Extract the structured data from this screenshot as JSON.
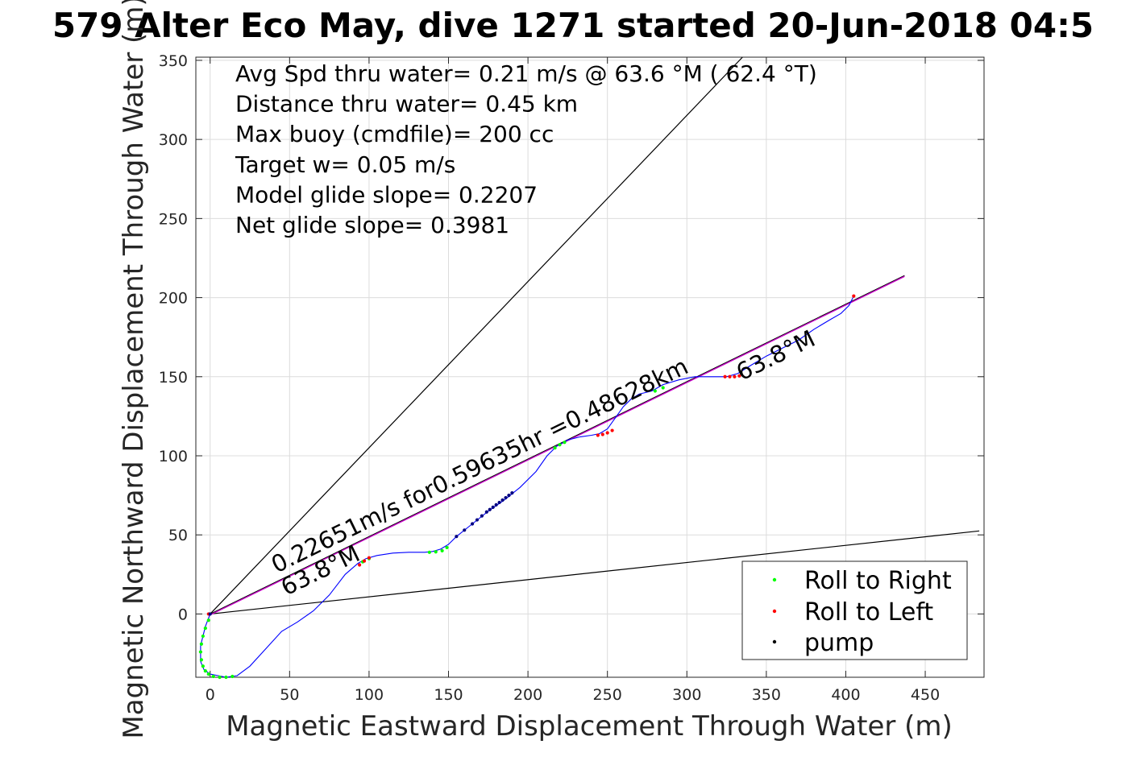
{
  "title": "579 Alter Eco May, dive 1271 started 20-Jun-2018 04:5",
  "stats": [
    "Avg Spd thru water=  0.21 m/s @  63.6 °M ( 62.4 °T)",
    "Distance thru water=  0.45 km",
    "Max buoy (cmdfile)= 200 cc",
    "Target w= 0.05 m/s",
    "Model glide slope= 0.2207",
    "Net glide slope= 0.3981"
  ],
  "annotations": {
    "speed_line_label": "0.22651m/s for0.59635hr =0.48628km",
    "heading_label_upper": "63.8°M",
    "heading_label_lower": "63.8°M"
  },
  "colors": {
    "track": "#0000ff",
    "roll_right": "#00ff00",
    "roll_left": "#ff0000",
    "pump": "#000080",
    "net_heading_line": "#cc00cc",
    "glide_envelope": "#000000"
  },
  "chart_data": {
    "type": "scatter",
    "xlabel": "Magnetic Eastward Displacement Through Water (m)",
    "ylabel": "Magnetic Northward Displacement Through Water (m)",
    "xlim": [
      -9,
      487
    ],
    "ylim": [
      -40,
      352
    ],
    "xticks": [
      0,
      50,
      100,
      150,
      200,
      250,
      300,
      350,
      400,
      450
    ],
    "yticks": [
      0,
      50,
      100,
      150,
      200,
      250,
      300,
      350
    ],
    "grid": true,
    "legend_position": "bottom-right",
    "legend": [
      "Roll to Right",
      "Roll to Left",
      "pump"
    ],
    "series": [
      {
        "name": "track",
        "style": "line",
        "x": [
          0,
          -3,
          -6,
          -6,
          -4,
          0,
          5,
          10,
          17,
          25,
          35,
          45,
          55,
          65,
          75,
          85,
          93,
          98,
          105,
          115,
          125,
          135,
          140,
          145,
          150,
          155,
          165,
          175,
          185,
          195,
          205,
          212,
          218,
          225,
          233,
          240,
          245,
          250,
          255,
          260,
          265,
          270,
          278,
          285,
          295,
          305,
          315,
          325,
          332,
          340,
          350,
          360,
          370,
          380,
          390,
          397,
          402,
          405
        ],
        "y": [
          0,
          -8,
          -20,
          -30,
          -35,
          -38,
          -39,
          -40,
          -39,
          -33,
          -22,
          -11,
          -5,
          2,
          12,
          25,
          32,
          35,
          37,
          38.5,
          39,
          39,
          39.5,
          41,
          44,
          49,
          57,
          65,
          72,
          80,
          90,
          100,
          106,
          110,
          112,
          113,
          114,
          117,
          124,
          131,
          136,
          139,
          141,
          145,
          148,
          150,
          150,
          150,
          152,
          157,
          163,
          168,
          173,
          180,
          186,
          190,
          195,
          201
        ]
      },
      {
        "name": "Roll to Right",
        "style": "dot",
        "x": [
          -1,
          -3,
          -4.5,
          -5.5,
          -6,
          -5.5,
          -4.5,
          -3,
          -1,
          2,
          6,
          10,
          14,
          96,
          100,
          138,
          142,
          146,
          149,
          217,
          220,
          223,
          280,
          285
        ],
        "y": [
          -4,
          -9,
          -14,
          -19,
          -24,
          -29,
          -33,
          -36,
          -38,
          -39.5,
          -40,
          -40,
          -39.5,
          33,
          35,
          39,
          39.3,
          40,
          42,
          105,
          107,
          108.5,
          141,
          143
        ]
      },
      {
        "name": "Roll to Left",
        "style": "dot",
        "x": [
          -1,
          94,
          97,
          100,
          244,
          247,
          250,
          253,
          324,
          327,
          330,
          333,
          405
        ],
        "y": [
          0,
          31,
          33.5,
          35.5,
          113,
          113.5,
          114.5,
          116,
          150,
          150,
          150,
          150.5,
          201
        ]
      },
      {
        "name": "pump",
        "style": "dot",
        "x": [
          0,
          155,
          160,
          165,
          168,
          171,
          174,
          176,
          178,
          180,
          182,
          184,
          186,
          188,
          190
        ],
        "y": [
          0,
          49,
          53,
          57,
          59.5,
          62,
          64.5,
          66,
          67.5,
          69,
          70.5,
          72,
          73.5,
          75,
          76.5
        ]
      },
      {
        "name": "net-heading",
        "style": "line",
        "x": [
          0,
          437
        ],
        "y": [
          0,
          214
        ]
      },
      {
        "name": "glide-envelope-upper",
        "style": "line",
        "x": [
          0,
          335
        ],
        "y": [
          0,
          352
        ]
      },
      {
        "name": "glide-envelope-lower",
        "style": "line",
        "x": [
          0,
          484
        ],
        "y": [
          0,
          52.5
        ]
      }
    ]
  }
}
